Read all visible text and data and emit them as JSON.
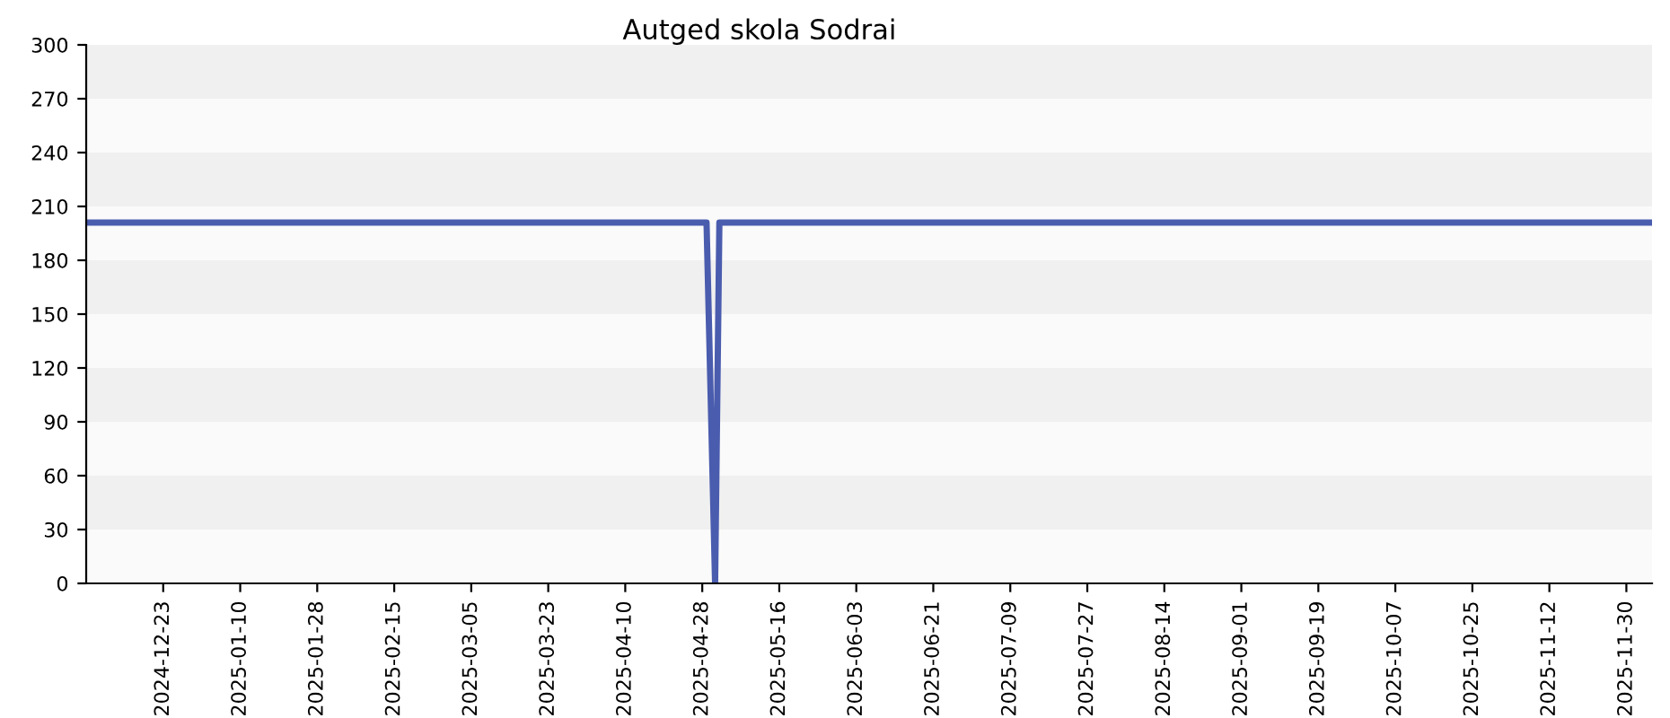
{
  "chart_data": {
    "type": "line",
    "title": "Autged skola Sodrai",
    "x": [
      "2024-12-05",
      "2025-04-29",
      "2025-05-01",
      "2025-05-02",
      "2025-12-06"
    ],
    "series": [
      {
        "color": "#4a5cae",
        "values": [
          201,
          201,
          0,
          201,
          201
        ]
      }
    ],
    "xlim": [
      "2024-12-05",
      "2025-12-06"
    ],
    "xticks": [
      "2024-12-23",
      "2025-01-10",
      "2025-01-28",
      "2025-02-15",
      "2025-03-05",
      "2025-03-23",
      "2025-04-10",
      "2025-04-28",
      "2025-05-16",
      "2025-06-03",
      "2025-06-21",
      "2025-07-09",
      "2025-07-27",
      "2025-08-14",
      "2025-09-01",
      "2025-09-19",
      "2025-10-07",
      "2025-10-25",
      "2025-11-12",
      "2025-11-30"
    ],
    "ylim": [
      0,
      300
    ],
    "yticks": [
      0,
      30,
      60,
      90,
      120,
      150,
      180,
      210,
      240,
      270,
      300
    ],
    "marker": "none",
    "line_style": "solid"
  }
}
